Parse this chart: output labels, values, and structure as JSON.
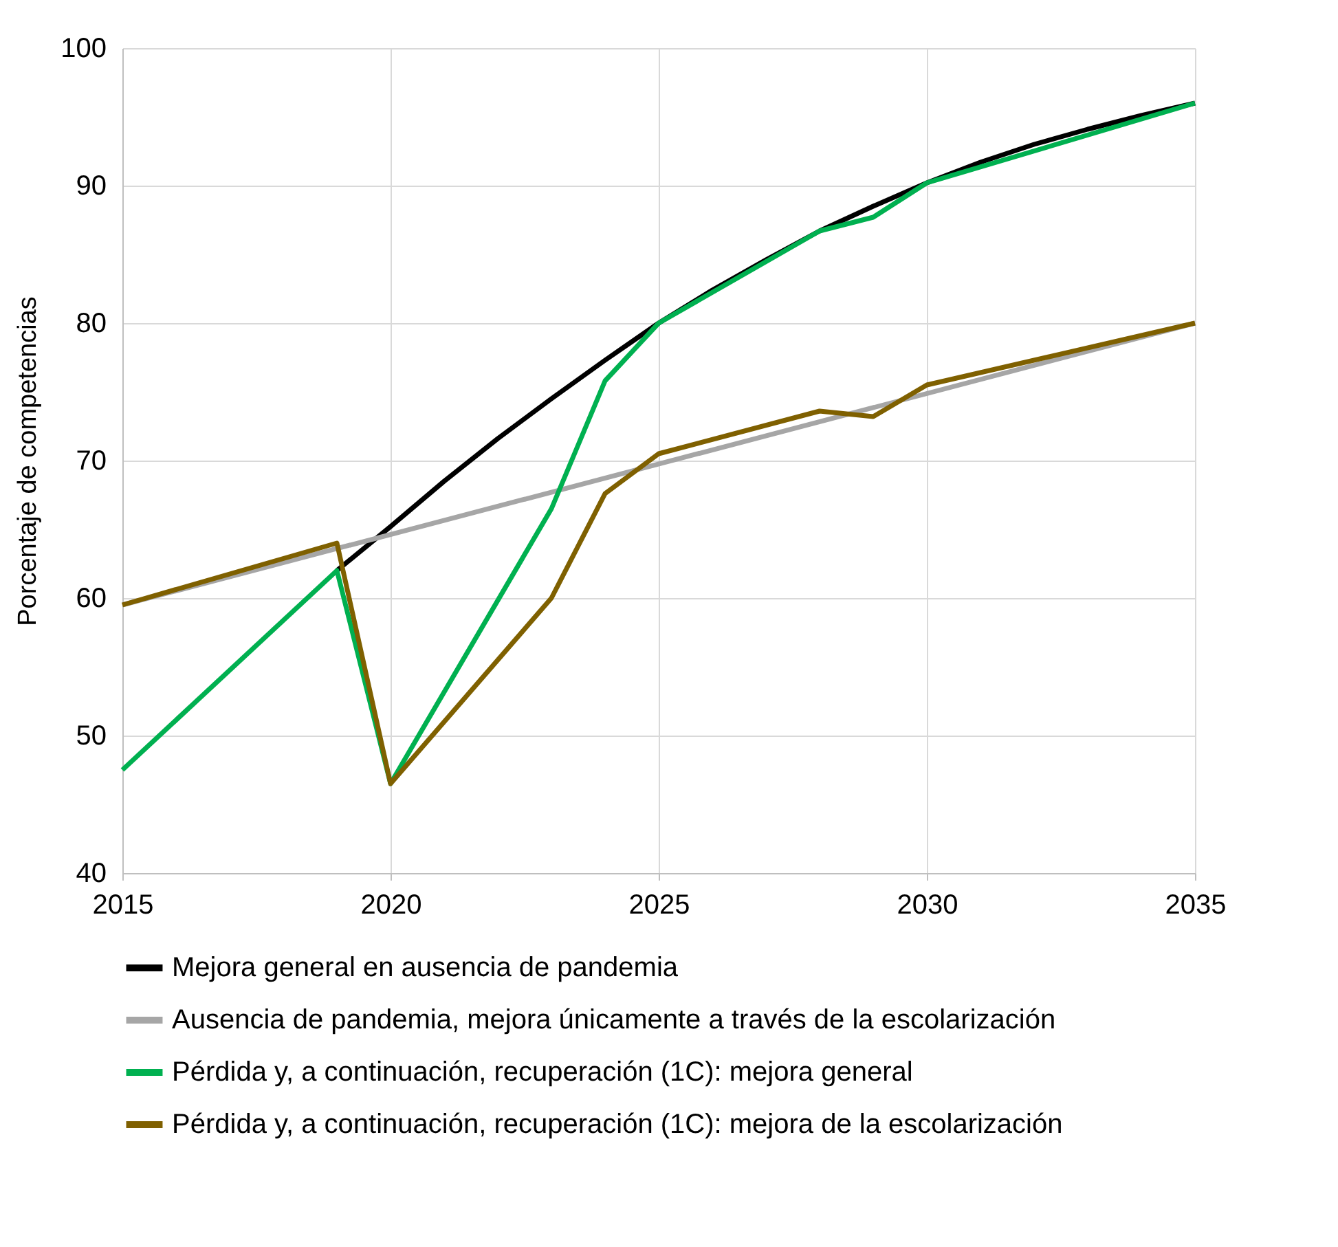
{
  "chart_data": {
    "type": "line",
    "ylabel": "Porcentaje de competencias",
    "xlim": [
      2015,
      2035
    ],
    "xticks": [
      2015,
      2020,
      2025,
      2030,
      2035
    ],
    "ylim": [
      40,
      100
    ],
    "yticks": [
      40,
      50,
      60,
      70,
      80,
      90,
      100
    ],
    "grid": true,
    "legend": "bottom",
    "line_style": "solid",
    "marker": "none",
    "series": [
      {
        "name": "Mejora general en ausencia de pandemia",
        "color": "#000000",
        "x": [
          2019,
          2020,
          2021,
          2022,
          2023,
          2024,
          2025,
          2026,
          2027,
          2028,
          2029,
          2030,
          2031,
          2032,
          2033,
          2034,
          2035
        ],
        "values": [
          62,
          65.2,
          68.5,
          71.6,
          74.5,
          77.3,
          80,
          82.4,
          84.6,
          86.7,
          88.5,
          90.2,
          91.7,
          93,
          94.1,
          95.1,
          96
        ]
      },
      {
        "name": "Ausencia de pandemia, mejora únicamente a través de la escolarización",
        "color": "#a6a6a6",
        "x": [
          2015,
          2035
        ],
        "values": [
          59.5,
          80
        ]
      },
      {
        "name": "Pérdida y, a continuación, recuperación (1C): mejora general",
        "color": "#00b050",
        "x": [
          2015,
          2019,
          2020,
          2023,
          2024,
          2025,
          2028,
          2029,
          2030,
          2035
        ],
        "values": [
          47.5,
          62,
          46.5,
          66.5,
          75.8,
          80,
          86.7,
          87.7,
          90.2,
          96
        ]
      },
      {
        "name": "Pérdida y, a continuación, recuperación (1C): mejora de la escolarización",
        "color": "#7f6000",
        "x": [
          2015,
          2019,
          2020,
          2023,
          2024,
          2025,
          2028,
          2029,
          2030,
          2035
        ],
        "values": [
          59.5,
          64,
          46.5,
          60,
          67.6,
          70.5,
          73.6,
          73.2,
          75.5,
          80
        ]
      }
    ]
  }
}
